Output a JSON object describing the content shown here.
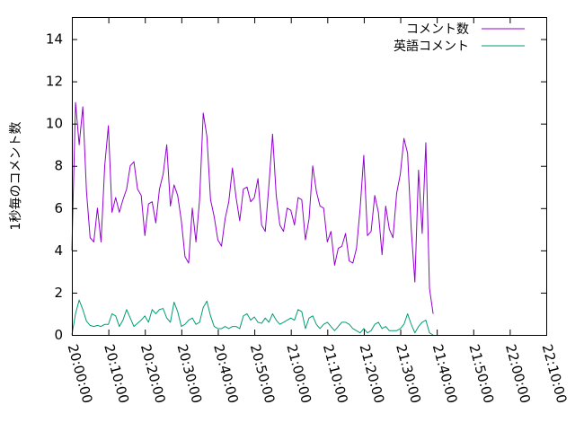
{
  "chart_data": {
    "type": "line",
    "ylabel": "1秒毎のコメント数",
    "xlim": [
      "20:00:00",
      "22:10:00"
    ],
    "ylim": [
      0,
      15
    ],
    "x_ticks": [
      "20:00:00",
      "20:10:00",
      "20:20:00",
      "20:30:00",
      "20:40:00",
      "20:50:00",
      "21:00:00",
      "21:10:00",
      "21:20:00",
      "21:30:00",
      "21:40:00",
      "21:50:00",
      "22:00:00",
      "22:10:00"
    ],
    "y_ticks": [
      "0",
      "2",
      "4",
      "6",
      "8",
      "10",
      "12",
      "14"
    ],
    "y_tick_values": [
      0,
      2,
      4,
      6,
      8,
      10,
      12,
      14
    ],
    "grid": false,
    "legend_position": "top-right",
    "x_start": "20:00:00",
    "x_step_minutes": 1,
    "series": [
      {
        "name": "コメント数",
        "color": "#9400d3",
        "values": [
          4.0,
          11.0,
          9.0,
          10.8,
          6.8,
          4.6,
          4.4,
          6.0,
          4.4,
          8.0,
          9.9,
          5.8,
          6.5,
          5.8,
          6.4,
          6.9,
          8.0,
          8.2,
          6.9,
          6.6,
          4.7,
          6.2,
          6.3,
          5.3,
          6.9,
          7.6,
          9.0,
          6.1,
          7.1,
          6.6,
          5.4,
          3.7,
          3.4,
          6.0,
          4.4,
          6.4,
          10.5,
          9.4,
          6.4,
          5.6,
          4.5,
          4.2,
          5.5,
          6.3,
          7.9,
          6.5,
          5.4,
          6.9,
          7.0,
          6.3,
          6.5,
          7.4,
          5.2,
          4.9,
          7.1,
          9.5,
          6.6,
          5.2,
          4.9,
          6.0,
          5.9,
          5.2,
          6.5,
          6.4,
          4.5,
          5.5,
          8.0,
          6.8,
          6.1,
          6.0,
          4.4,
          4.9,
          3.3,
          4.1,
          4.2,
          4.8,
          3.5,
          3.4,
          4.1,
          6.0,
          8.5,
          4.7,
          4.9,
          6.6,
          5.8,
          3.8,
          6.1,
          5.0,
          4.6,
          6.7,
          7.6,
          9.3,
          8.6,
          5.0,
          2.5,
          7.8,
          4.8,
          9.1,
          2.2,
          1.0
        ]
      },
      {
        "name": "英語コメント",
        "color": "#009e73",
        "values": [
          0.0,
          1.0,
          1.65,
          1.2,
          0.65,
          0.45,
          0.4,
          0.45,
          0.4,
          0.5,
          0.5,
          1.0,
          0.9,
          0.4,
          0.7,
          1.2,
          0.8,
          0.4,
          0.55,
          0.7,
          0.9,
          0.6,
          1.2,
          1.0,
          1.2,
          1.25,
          0.8,
          0.6,
          1.55,
          1.1,
          0.4,
          0.5,
          0.7,
          0.8,
          0.5,
          0.6,
          1.3,
          1.6,
          0.9,
          0.4,
          0.3,
          0.3,
          0.4,
          0.3,
          0.4,
          0.4,
          0.3,
          0.9,
          1.0,
          0.7,
          0.85,
          0.6,
          0.55,
          0.8,
          0.6,
          1.0,
          0.7,
          0.5,
          0.6,
          0.7,
          0.8,
          0.7,
          1.2,
          1.1,
          0.3,
          0.8,
          0.9,
          0.5,
          0.3,
          0.5,
          0.6,
          0.4,
          0.2,
          0.4,
          0.6,
          0.6,
          0.5,
          0.3,
          0.2,
          0.1,
          0.3,
          0.1,
          0.2,
          0.5,
          0.6,
          0.3,
          0.4,
          0.2,
          0.2,
          0.2,
          0.3,
          0.5,
          1.0,
          0.5,
          0.1,
          0.4,
          0.6,
          0.7,
          0.1,
          0.0
        ]
      }
    ]
  }
}
